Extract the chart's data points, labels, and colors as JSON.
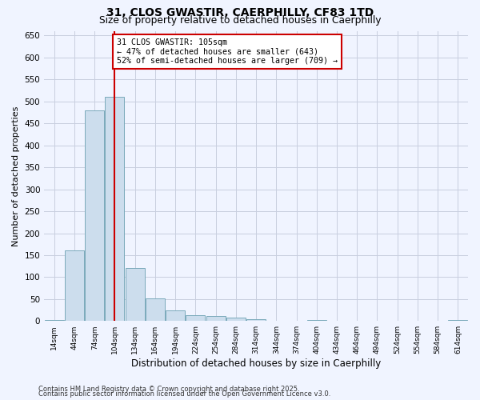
{
  "title_line1": "31, CLOS GWASTIR, CAERPHILLY, CF83 1TD",
  "title_line2": "Size of property relative to detached houses in Caerphilly",
  "xlabel": "Distribution of detached houses by size in Caerphilly",
  "ylabel": "Number of detached properties",
  "bin_labels": [
    "14sqm",
    "44sqm",
    "74sqm",
    "104sqm",
    "134sqm",
    "164sqm",
    "194sqm",
    "224sqm",
    "254sqm",
    "284sqm",
    "314sqm",
    "344sqm",
    "374sqm",
    "404sqm",
    "434sqm",
    "464sqm",
    "494sqm",
    "524sqm",
    "554sqm",
    "584sqm",
    "614sqm"
  ],
  "bar_heights": [
    3,
    160,
    480,
    510,
    120,
    52,
    25,
    13,
    11,
    8,
    5,
    0,
    0,
    3,
    0,
    0,
    0,
    0,
    0,
    0,
    3
  ],
  "bar_color": "#ccdded",
  "bar_edge_color": "#7aaabb",
  "property_line_x": 3,
  "annotation_text": "31 CLOS GWASTIR: 105sqm\n← 47% of detached houses are smaller (643)\n52% of semi-detached houses are larger (709) →",
  "annotation_box_color": "white",
  "annotation_box_edge_color": "#cc0000",
  "vline_color": "#cc0000",
  "ylim": [
    0,
    660
  ],
  "yticks": [
    0,
    50,
    100,
    150,
    200,
    250,
    300,
    350,
    400,
    450,
    500,
    550,
    600,
    650
  ],
  "footer_line1": "Contains HM Land Registry data © Crown copyright and database right 2025.",
  "footer_line2": "Contains public sector information licensed under the Open Government Licence v3.0.",
  "bg_color": "#f0f4ff",
  "grid_color": "#c8cedf"
}
